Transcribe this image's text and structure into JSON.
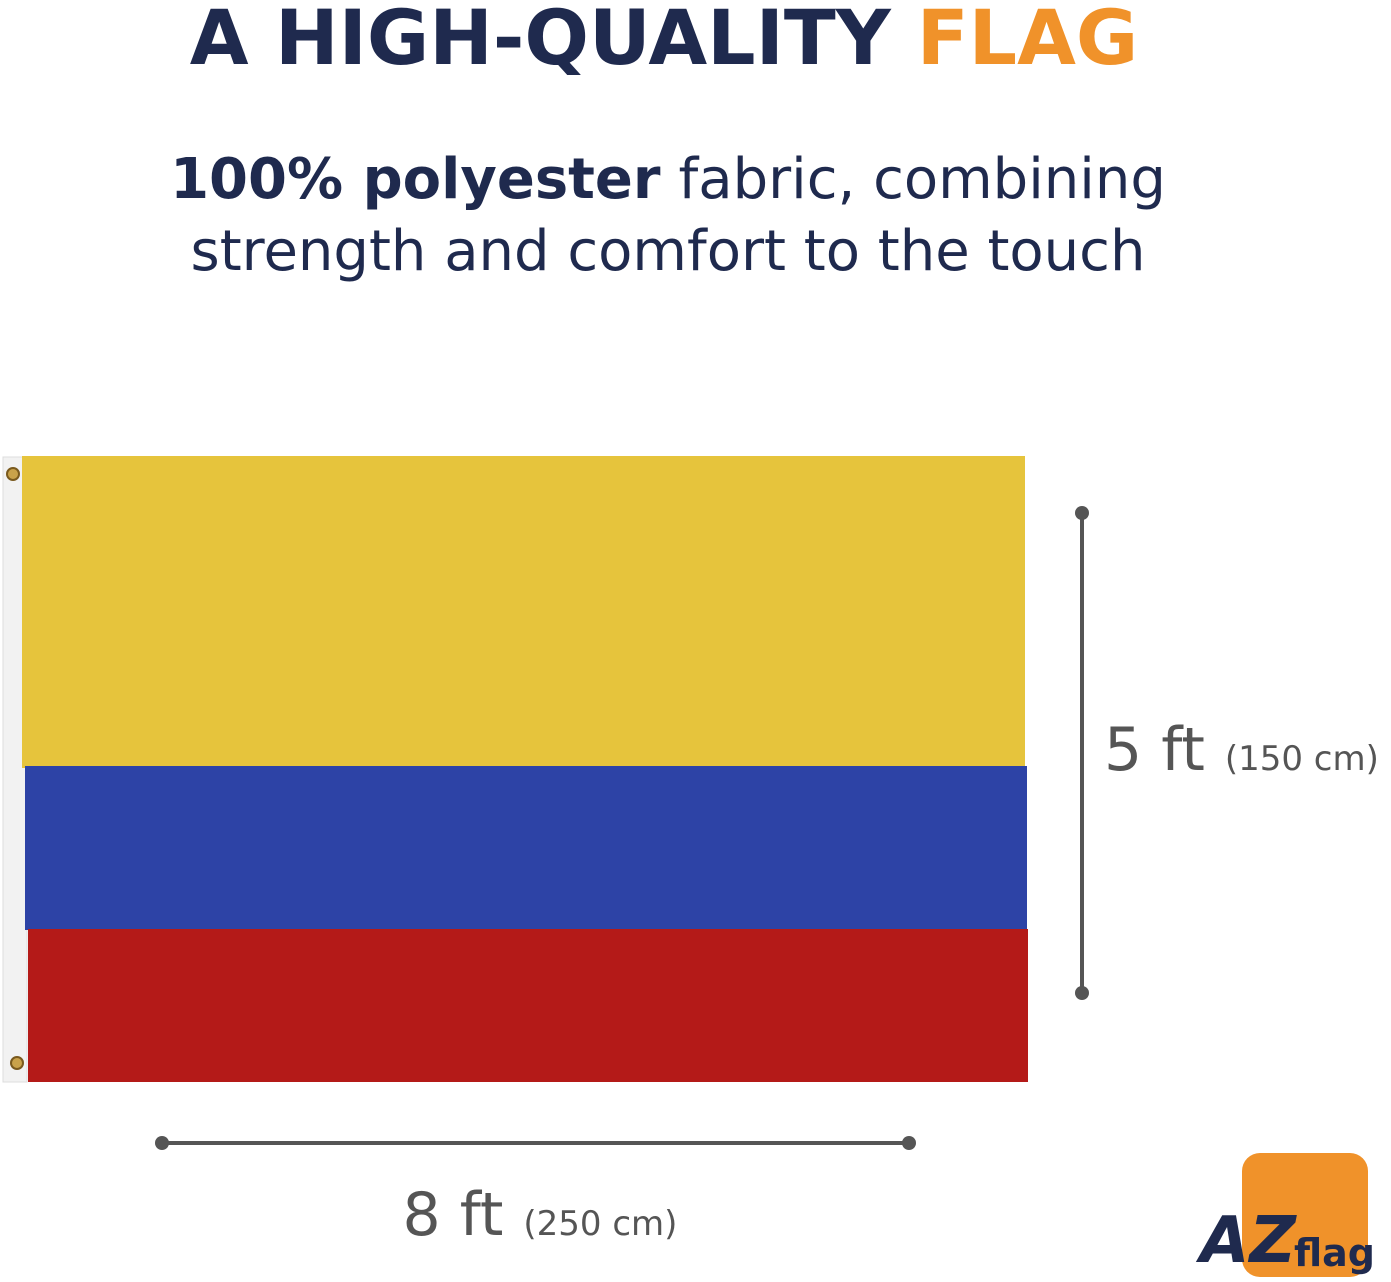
{
  "header": {
    "title_main": "A HIGH-QUALITY",
    "title_accent": "FLAG"
  },
  "description": {
    "bold": "100% polyester",
    "line1_rest": "fabric, combining",
    "line2": "strength and comfort to the touch"
  },
  "dimensions": {
    "height": {
      "label": "5 ft",
      "metric": "(150 cm)"
    },
    "width": {
      "label": "8 ft",
      "metric": "(250 cm)"
    }
  },
  "logo": {
    "letters": "AZ",
    "word": "flag"
  }
}
